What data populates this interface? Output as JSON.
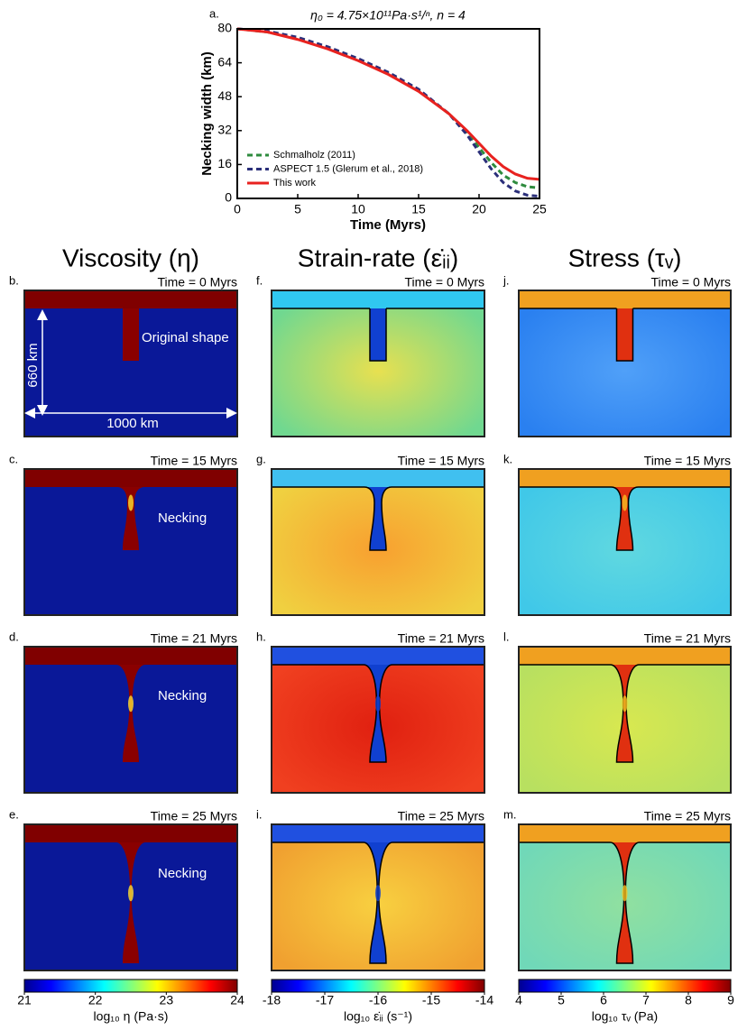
{
  "chart_data": {
    "type": "line",
    "panel_label": "a.",
    "title": "η₀ = 4.75×10¹¹Pa·s¹/ⁿ, n = 4",
    "x_label": "Time (Myrs)",
    "y_label": "Necking width (km)",
    "xlim": [
      0,
      25
    ],
    "xticks": [
      0,
      5,
      10,
      15,
      20,
      25
    ],
    "ylim": [
      0,
      80
    ],
    "yticks": [
      0,
      16,
      32,
      48,
      64,
      80
    ],
    "legend": "lower left",
    "x": [
      0,
      2.5,
      5,
      7.5,
      10,
      12.5,
      15,
      17.5,
      19,
      20,
      21,
      22,
      23,
      24,
      25
    ],
    "series": [
      {
        "name": "Schmalholz (2011)",
        "color": "#2e8b3e",
        "dashed": true,
        "values": [
          80,
          78.5,
          75.5,
          71,
          65.5,
          59,
          51,
          40,
          31,
          24,
          17,
          11,
          7.5,
          5.5,
          5
        ]
      },
      {
        "name": "ASPECT 1.5 (Glerum et al., 2018)",
        "color": "#2b2f7a",
        "dashed": true,
        "values": [
          80,
          79,
          76,
          71.5,
          66,
          59.5,
          51.5,
          40,
          30,
          22,
          14,
          7.5,
          3.5,
          1.5,
          1
        ]
      },
      {
        "name": "This work",
        "color": "#e8221f",
        "dashed": false,
        "values": [
          80,
          78.5,
          75,
          70.5,
          65,
          58.5,
          50.5,
          40,
          32,
          26,
          20,
          15,
          11.5,
          9.5,
          9
        ]
      }
    ]
  },
  "scale": {
    "depth": "660 km",
    "width": "1000 km"
  },
  "columns": [
    {
      "title": "Viscosity (η)",
      "colorbar": {
        "range": [
          21,
          24
        ],
        "ticks": [
          21,
          22,
          23,
          24
        ],
        "label": "log₁₀ η (Pa·s)"
      },
      "panels": [
        {
          "label": "b.",
          "time": "Time = 0 Myrs",
          "annotation": "Original shape"
        },
        {
          "label": "c.",
          "time": "Time = 15 Myrs",
          "annotation": "Necking"
        },
        {
          "label": "d.",
          "time": "Time = 21 Myrs",
          "annotation": "Necking"
        },
        {
          "label": "e.",
          "time": "Time = 25 Myrs",
          "annotation": "Necking"
        }
      ]
    },
    {
      "title": "Strain-rate (ε̇ᵢᵢ)",
      "colorbar": {
        "range": [
          -18,
          -14
        ],
        "ticks": [
          -18,
          -17,
          -16,
          -15,
          -14
        ],
        "label": "log₁₀ ε̇ᵢᵢ (s⁻¹)"
      },
      "panels": [
        {
          "label": "f.",
          "time": "Time = 0 Myrs"
        },
        {
          "label": "g.",
          "time": "Time = 15 Myrs"
        },
        {
          "label": "h.",
          "time": "Time = 21 Myrs"
        },
        {
          "label": "i.",
          "time": "Time = 25 Myrs"
        }
      ]
    },
    {
      "title": "Stress (τᵥ)",
      "colorbar": {
        "range": [
          4,
          9
        ],
        "ticks": [
          4,
          5,
          6,
          7,
          8,
          9
        ],
        "label": "log₁₀ τᵥ (Pa)"
      },
      "panels": [
        {
          "label": "j.",
          "time": "Time = 0 Myrs"
        },
        {
          "label": "k.",
          "time": "Time = 15 Myrs"
        },
        {
          "label": "l.",
          "time": "Time = 21 Myrs"
        },
        {
          "label": "m.",
          "time": "Time = 25 Myrs"
        }
      ]
    }
  ]
}
